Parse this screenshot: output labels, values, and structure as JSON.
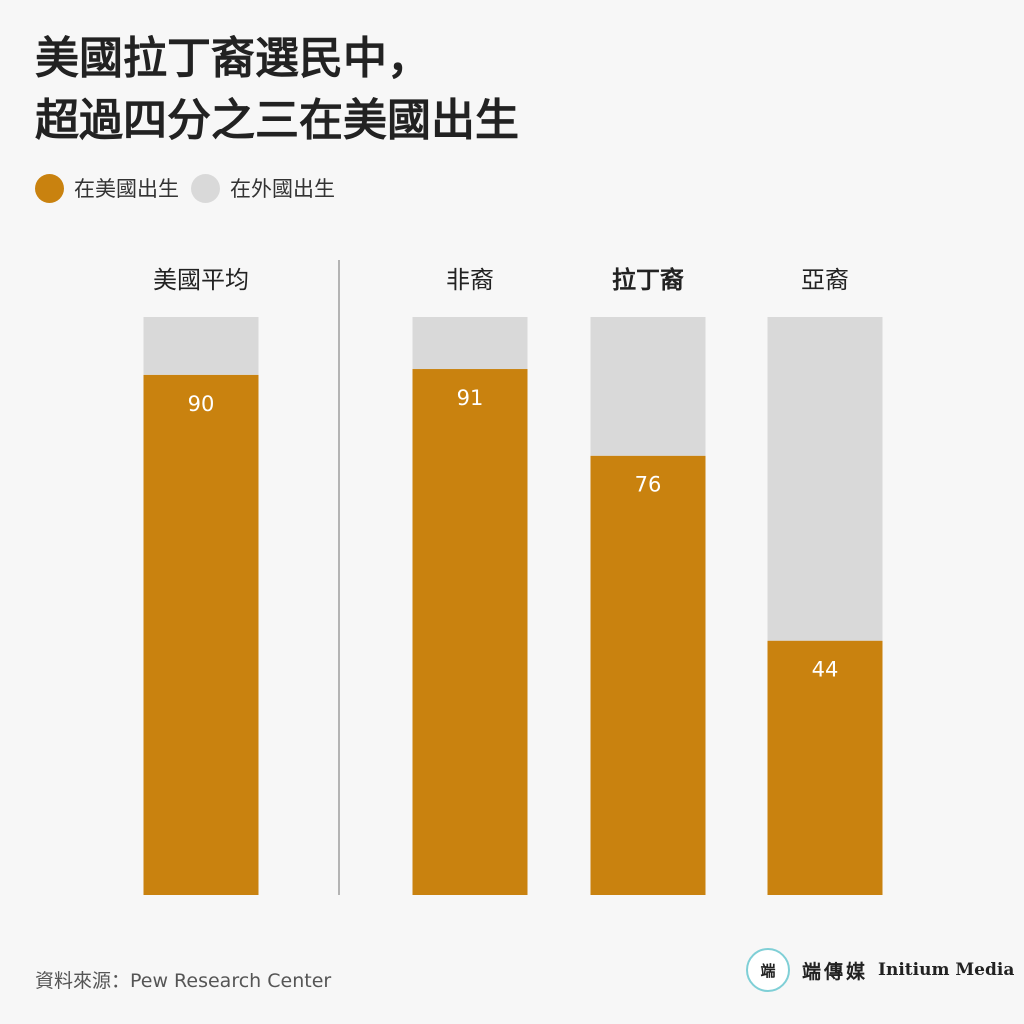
{
  "title_lines": [
    "美國拉丁裔選民中，",
    "超過四分之三在美國出生"
  ],
  "legend": [
    {
      "label": "在美國出生",
      "color": "#c9820f"
    },
    {
      "label": "在外國出生",
      "color": "#d9d9d9"
    }
  ],
  "chart_data": {
    "type": "bar",
    "stacked": true,
    "categories": [
      "美國平均",
      "非裔",
      "拉丁裔",
      "亞裔"
    ],
    "highlight_category": "拉丁裔",
    "series": [
      {
        "name": "在美國出生",
        "values": [
          90,
          91,
          76,
          44
        ],
        "color": "#c9820f"
      },
      {
        "name": "在外國出生",
        "values": [
          10,
          9,
          24,
          56
        ],
        "color": "#d9d9d9"
      }
    ],
    "data_labels": [
      "90",
      "91",
      "76",
      "44"
    ],
    "ylim": [
      0,
      100
    ],
    "grid": false,
    "divider_after_category": "美國平均"
  },
  "source": "資料來源：Pew Research Center",
  "brand": {
    "logo_text": "端",
    "name_cn": "端傳媒",
    "name_en": "Initium Media"
  }
}
